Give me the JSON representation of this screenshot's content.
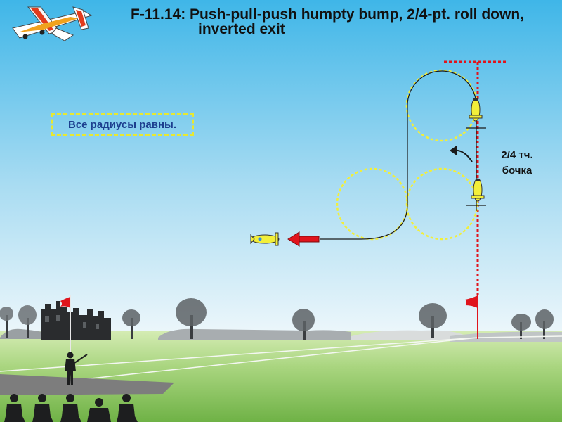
{
  "title": {
    "line1": "F-11.14: Push-pull-push humpty bump, 2/4-pt. roll down,",
    "line2": "inverted exit"
  },
  "note": "Все радиусы равны.",
  "roll_label": {
    "line1": "2/4 тч.",
    "line2": "бочка"
  },
  "colors": {
    "sky_top": "#3fb6e8",
    "sky_bottom": "#e9f5fb",
    "grass_light": "#c8e7a6",
    "grass_dark": "#7fbf57",
    "path_yellow": "#f2ef3a",
    "line_red": "#e0141c",
    "note_text": "#1d3f8f",
    "runway": "#7a7a7a"
  }
}
